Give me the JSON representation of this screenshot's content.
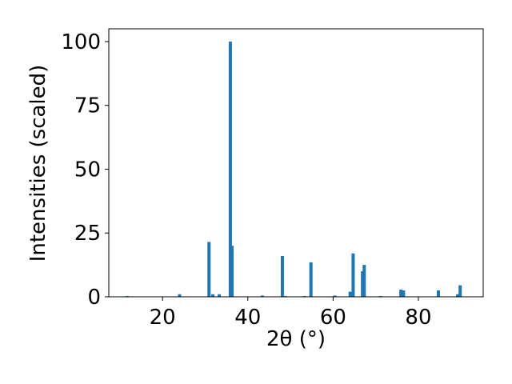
{
  "chart_data": {
    "type": "bar",
    "color": "#1f77b4",
    "xlabel": "2θ (°)",
    "ylabel": "Intensities (scaled)",
    "x": [
      11.7,
      24.0,
      30.9,
      31.8,
      33.3,
      35.9,
      36.3,
      43.4,
      48.1,
      48.8,
      53.3,
      54.8,
      60.4,
      64.0,
      64.7,
      66.9,
      67.3,
      71.1,
      75.9,
      76.5,
      84.7,
      89.2,
      89.8
    ],
    "values": [
      0.3,
      1,
      21.5,
      1,
      1,
      100,
      20,
      0.5,
      16,
      0.3,
      0.3,
      13.5,
      0.5,
      2,
      17,
      10,
      12.5,
      0.3,
      2.8,
      2.5,
      2.5,
      1,
      4.5
    ],
    "xlim": [
      7.4,
      95.2
    ],
    "xticks": [
      20,
      40,
      60,
      80
    ],
    "ylim": [
      0,
      105
    ],
    "yticks": [
      0,
      25,
      50,
      75,
      100
    ]
  }
}
